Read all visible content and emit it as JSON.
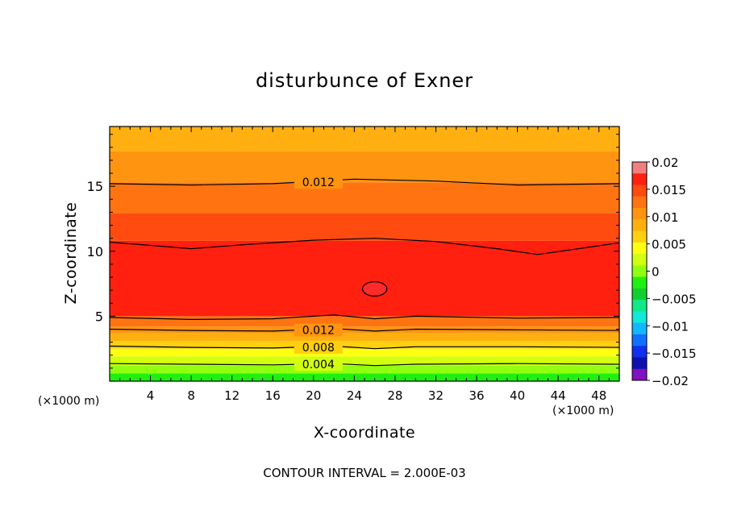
{
  "chart_data": {
    "type": "contour",
    "title": "disturbunce of Exner",
    "xlabel": "X-coordinate",
    "ylabel": "Z-coordinate",
    "x_unit_label_left": "(×1000 m)",
    "x_unit_label_right": "(×1000 m)",
    "contour_interval_text": "CONTOUR INTERVAL = 2.000E-03",
    "xlim": [
      0,
      50
    ],
    "ylim": [
      0,
      19.6
    ],
    "x_ticks": [
      4,
      8,
      12,
      16,
      20,
      24,
      28,
      32,
      36,
      40,
      44,
      48
    ],
    "x_tick_labels": [
      "4",
      "8",
      "12",
      "16",
      "20",
      "24",
      "28",
      "32",
      "36",
      "40",
      "44",
      "48"
    ],
    "y_ticks": [
      5,
      10,
      15
    ],
    "y_tick_labels": [
      "5",
      "10",
      "15"
    ],
    "colorbar": {
      "range": [
        -0.02,
        0.02
      ],
      "tick_values": [
        0.02,
        0.015,
        0.01,
        0.005,
        0,
        -0.005,
        -0.01,
        -0.015,
        -0.02
      ],
      "tick_labels": [
        "0.02",
        "0.015",
        "0.01",
        "0.005",
        "0",
        "−0.005",
        "−0.01",
        "−0.015",
        "−0.02"
      ],
      "colors": [
        "#f08080",
        "#ff2010",
        "#ff4a10",
        "#ff7410",
        "#ff9410",
        "#ffb010",
        "#ffd010",
        "#ffff10",
        "#d2ff10",
        "#90ff10",
        "#20f010",
        "#10d030",
        "#10e88a",
        "#10e8d8",
        "#10b8ff",
        "#1070ff",
        "#1030f0",
        "#1010b0",
        "#8010c0"
      ]
    },
    "bands": [
      {
        "z": 0.0,
        "color": "#20f010"
      },
      {
        "z": 0.6,
        "color": "#90ff10"
      },
      {
        "z": 1.2,
        "color": "#d2ff10"
      },
      {
        "z": 1.9,
        "color": "#ffff10"
      },
      {
        "z": 2.5,
        "color": "#ffd010"
      },
      {
        "z": 3.1,
        "color": "#ffb010"
      },
      {
        "z": 3.7,
        "color": "#ff9410"
      },
      {
        "z": 4.2,
        "color": "#ff7410"
      },
      {
        "z": 5.0,
        "color": "#ff2010"
      },
      {
        "z": 10.8,
        "color": "#ff4a10"
      },
      {
        "z": 12.9,
        "color": "#ff7410"
      },
      {
        "z": 15.3,
        "color": "#ff9410"
      },
      {
        "z": 17.7,
        "color": "#ffb010"
      }
    ],
    "contour_lines": [
      {
        "label": "0.004",
        "label_x": 18.5,
        "points": [
          [
            0,
            1.35
          ],
          [
            8,
            1.3
          ],
          [
            16,
            1.25
          ],
          [
            22,
            1.35
          ],
          [
            26,
            1.2
          ],
          [
            30,
            1.3
          ],
          [
            40,
            1.35
          ],
          [
            50,
            1.3
          ]
        ]
      },
      {
        "label": "0.008",
        "label_x": 18.5,
        "points": [
          [
            0,
            2.7
          ],
          [
            8,
            2.6
          ],
          [
            16,
            2.55
          ],
          [
            22,
            2.7
          ],
          [
            26,
            2.5
          ],
          [
            30,
            2.65
          ],
          [
            40,
            2.65
          ],
          [
            50,
            2.6
          ]
        ]
      },
      {
        "label": "0.012",
        "label_x": 18.5,
        "points": [
          [
            0,
            4.0
          ],
          [
            8,
            3.9
          ],
          [
            16,
            3.85
          ],
          [
            22,
            4.05
          ],
          [
            26,
            3.85
          ],
          [
            30,
            4.0
          ],
          [
            40,
            3.95
          ],
          [
            50,
            3.9
          ]
        ]
      },
      {
        "label": "",
        "label_x": 0,
        "points": [
          [
            0,
            4.9
          ],
          [
            8,
            4.75
          ],
          [
            16,
            4.8
          ],
          [
            22,
            5.1
          ],
          [
            26,
            4.8
          ],
          [
            30,
            5.0
          ],
          [
            40,
            4.85
          ],
          [
            50,
            4.9
          ]
        ]
      },
      {
        "label": "",
        "label_x": 0,
        "points": [
          [
            0,
            10.7
          ],
          [
            4,
            10.45
          ],
          [
            8,
            10.2
          ],
          [
            14,
            10.55
          ],
          [
            20,
            10.85
          ],
          [
            26,
            11.0
          ],
          [
            32,
            10.75
          ],
          [
            38,
            10.2
          ],
          [
            42,
            9.75
          ],
          [
            46,
            10.2
          ],
          [
            50,
            10.65
          ]
        ]
      },
      {
        "label": "0.012",
        "label_x": 18.5,
        "points": [
          [
            0,
            15.2
          ],
          [
            8,
            15.1
          ],
          [
            16,
            15.2
          ],
          [
            24,
            15.55
          ],
          [
            32,
            15.4
          ],
          [
            40,
            15.1
          ],
          [
            50,
            15.2
          ]
        ]
      }
    ],
    "closed_contours": [
      {
        "label": "",
        "cx": 26.0,
        "cy": 7.1,
        "rx": 1.2,
        "ry": 0.55,
        "fill": "#ff2a2a"
      }
    ]
  }
}
